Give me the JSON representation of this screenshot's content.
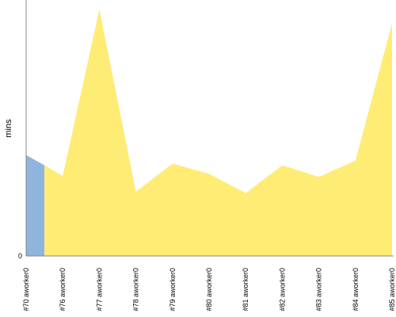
{
  "chart_data": {
    "type": "area",
    "title": "",
    "xlabel": "",
    "ylabel": "mins",
    "ylim": [
      0,
      33
    ],
    "yticks": [
      0
    ],
    "grid": false,
    "legend": "none",
    "categories": [
      "#70 aworker0",
      "#76 aworker0",
      "#77 aworker0",
      "#78 aworker0",
      "#79 aworker0",
      "#80 aworker0",
      "#81 aworker0",
      "#82 aworker0",
      "#83 aworker0",
      "#84 aworker0",
      "#85 aworker0"
    ],
    "series": [
      {
        "color": "#8fb4dd",
        "points": [
          [
            0,
            13.0
          ],
          [
            0.5,
            11.7
          ]
        ]
      },
      {
        "color": "#feec75",
        "points": [
          [
            0.5,
            11.7
          ],
          [
            1,
            10.3
          ],
          [
            2,
            31.8
          ],
          [
            3,
            8.3
          ],
          [
            4,
            11.9
          ],
          [
            5,
            10.6
          ],
          [
            6,
            8.1
          ],
          [
            7,
            11.7
          ],
          [
            8,
            10.2
          ],
          [
            9,
            12.3
          ],
          [
            10,
            30.0
          ]
        ]
      }
    ]
  }
}
